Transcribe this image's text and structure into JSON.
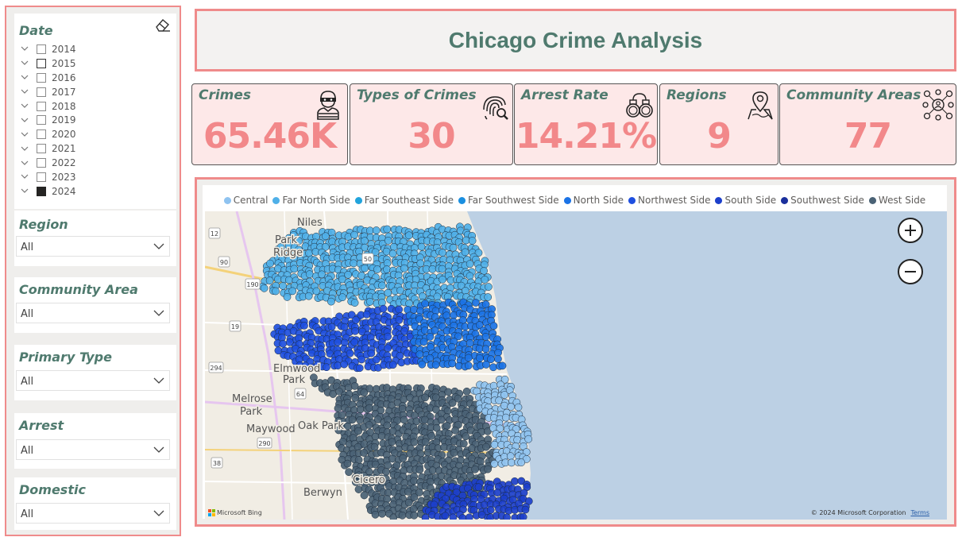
{
  "title": "Chicago Crime Analysis",
  "colors": {
    "accent_border": "#ef8b8b",
    "heading": "#4f7a6e",
    "kpi_value": "#f2888a",
    "kpi_bg": "#fde8e8"
  },
  "slicers": {
    "date": {
      "title": "Date",
      "years": [
        {
          "label": "2014",
          "state": "unchecked"
        },
        {
          "label": "2015",
          "state": "partial"
        },
        {
          "label": "2016",
          "state": "unchecked"
        },
        {
          "label": "2017",
          "state": "unchecked"
        },
        {
          "label": "2018",
          "state": "unchecked"
        },
        {
          "label": "2019",
          "state": "unchecked"
        },
        {
          "label": "2020",
          "state": "unchecked"
        },
        {
          "label": "2021",
          "state": "unchecked"
        },
        {
          "label": "2022",
          "state": "unchecked"
        },
        {
          "label": "2023",
          "state": "unchecked"
        },
        {
          "label": "2024",
          "state": "checked"
        }
      ]
    },
    "region": {
      "title": "Region",
      "value": "All"
    },
    "community_area": {
      "title": "Community Area",
      "value": "All"
    },
    "primary_type": {
      "title": "Primary Type",
      "value": "All"
    },
    "arrest": {
      "title": "Arrest",
      "value": "All"
    },
    "domestic": {
      "title": "Domestic",
      "value": "All"
    }
  },
  "kpis": [
    {
      "label": "Crimes",
      "value": "65.46K",
      "icon": "thief-icon"
    },
    {
      "label": "Types of Crimes",
      "value": "30",
      "icon": "fingerprint-search-icon"
    },
    {
      "label": "Arrest Rate",
      "value": "14.21%",
      "icon": "handcuffs-icon"
    },
    {
      "label": "Regions",
      "value": "9",
      "icon": "map-pin-icon"
    },
    {
      "label": "Community Areas",
      "value": "77",
      "icon": "community-network-icon"
    }
  ],
  "map": {
    "legend": [
      {
        "name": "Central",
        "color": "#8fc3f0"
      },
      {
        "name": "Far North Side",
        "color": "#4fb0e8"
      },
      {
        "name": "Far Southeast Side",
        "color": "#22a4dc"
      },
      {
        "name": "Far Southwest Side",
        "color": "#1a8fe0"
      },
      {
        "name": "North Side",
        "color": "#1b73e6"
      },
      {
        "name": "Northwest Side",
        "color": "#1e4fe0"
      },
      {
        "name": "South Side",
        "color": "#1c3fcb"
      },
      {
        "name": "Southwest Side",
        "color": "#1a2f9c"
      },
      {
        "name": "West Side",
        "color": "#4a6275"
      }
    ],
    "places": [
      "Niles",
      "Park Ridge",
      "Elmwood Park",
      "Melrose Park",
      "Maywood",
      "Oak Park",
      "Berwyn",
      "Cicero"
    ],
    "road_shields": [
      "12",
      "50",
      "90",
      "190",
      "19",
      "294",
      "64",
      "290",
      "38"
    ],
    "copyright": "© 2024 Microsoft Corporation",
    "terms": "Terms",
    "bing": "Microsoft Bing"
  }
}
